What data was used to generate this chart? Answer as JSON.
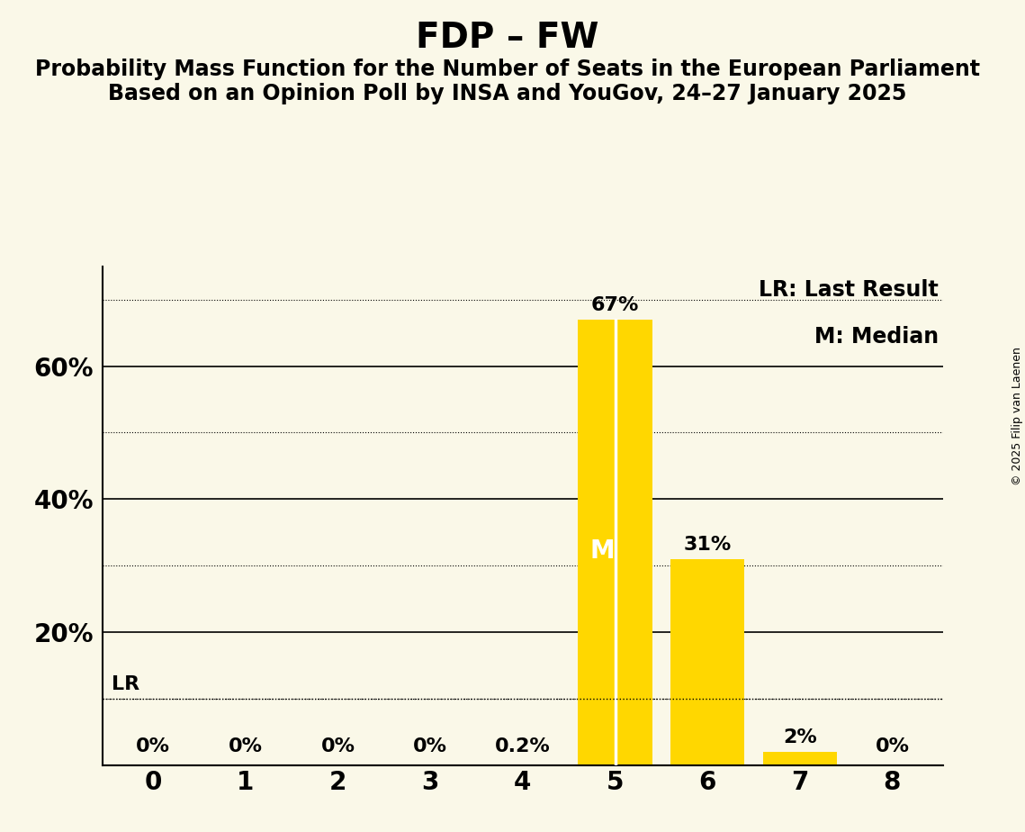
{
  "title": "FDP – FW",
  "subtitle1": "Probability Mass Function for the Number of Seats in the European Parliament",
  "subtitle2": "Based on an Opinion Poll by INSA and YouGov, 24–27 January 2025",
  "copyright": "© 2025 Filip van Laenen",
  "background_color": "#faf8e8",
  "bar_color": "#FFD700",
  "median_line_color": "#FFFFFF",
  "categories": [
    0,
    1,
    2,
    3,
    4,
    5,
    6,
    7,
    8
  ],
  "values": [
    0.0,
    0.0,
    0.0,
    0.0,
    0.2,
    67.0,
    31.0,
    2.0,
    0.0
  ],
  "labels": [
    "0%",
    "0%",
    "0%",
    "0%",
    "0.2%",
    "67%",
    "31%",
    "2%",
    "0%"
  ],
  "median": 5,
  "last_result": 5,
  "ylim": [
    0,
    75
  ],
  "ytick_positions": [
    20,
    40,
    60
  ],
  "ytick_labels": [
    "20%",
    "40%",
    "60%"
  ],
  "solid_gridlines": [
    20,
    40,
    60
  ],
  "dotted_gridlines": [
    10,
    30,
    50,
    70
  ],
  "lr_line_y": 10,
  "legend_lr": "LR: Last Result",
  "legend_m": "M: Median",
  "title_fontsize": 28,
  "subtitle_fontsize": 17,
  "label_fontsize": 16,
  "tick_fontsize": 20,
  "legend_fontsize": 17,
  "copyright_fontsize": 9,
  "xlim": [
    -0.55,
    8.55
  ]
}
